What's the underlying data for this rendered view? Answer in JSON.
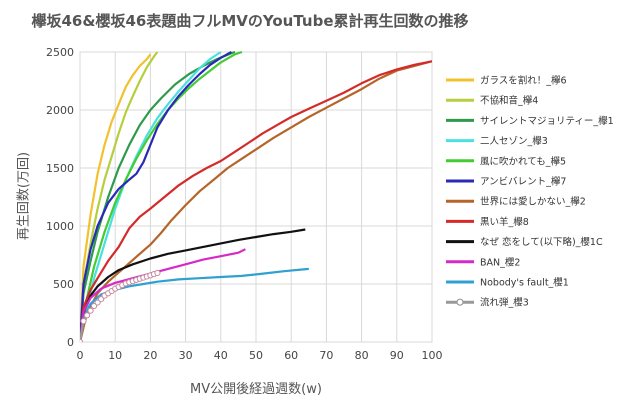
{
  "chart_data": {
    "type": "line",
    "title": "欅坂46&櫻坂46表題曲フルMVのYouTube累計再生回数の推移",
    "xlabel": "MV公開後経過週数(w)",
    "ylabel": "再生回数(万回)",
    "xlim": [
      0,
      100
    ],
    "ylim": [
      0,
      2500
    ],
    "xticks": [
      0,
      10,
      20,
      30,
      40,
      50,
      60,
      70,
      80,
      90,
      100
    ],
    "yticks": [
      0,
      500,
      1000,
      1500,
      2000,
      2500
    ],
    "grid": true,
    "legend_position": "right",
    "series": [
      {
        "name": "ガラスを割れ！_欅6",
        "color": "#f2c12e",
        "marker": "none",
        "points": [
          [
            0,
            0
          ],
          [
            1,
            650
          ],
          [
            3,
            1100
          ],
          [
            5,
            1450
          ],
          [
            7,
            1700
          ],
          [
            9,
            1900
          ],
          [
            11,
            2050
          ],
          [
            13,
            2200
          ],
          [
            15,
            2300
          ],
          [
            17,
            2380
          ],
          [
            19,
            2440
          ],
          [
            20,
            2480
          ]
        ]
      },
      {
        "name": "不協和音_欅4",
        "color": "#b5cf3c",
        "marker": "none",
        "points": [
          [
            0,
            0
          ],
          [
            1,
            500
          ],
          [
            3,
            850
          ],
          [
            5,
            1150
          ],
          [
            7,
            1400
          ],
          [
            9,
            1600
          ],
          [
            11,
            1800
          ],
          [
            13,
            1980
          ],
          [
            15,
            2120
          ],
          [
            17,
            2250
          ],
          [
            19,
            2370
          ],
          [
            21,
            2460
          ],
          [
            22,
            2500
          ]
        ]
      },
      {
        "name": "サイレントマジョリティー_欅1",
        "color": "#2e9a4a",
        "marker": "none",
        "points": [
          [
            0,
            0
          ],
          [
            1,
            420
          ],
          [
            3,
            700
          ],
          [
            5,
            950
          ],
          [
            8,
            1250
          ],
          [
            11,
            1500
          ],
          [
            14,
            1700
          ],
          [
            17,
            1870
          ],
          [
            20,
            2000
          ],
          [
            23,
            2100
          ],
          [
            27,
            2220
          ],
          [
            31,
            2310
          ],
          [
            35,
            2380
          ],
          [
            39,
            2440
          ],
          [
            43,
            2490
          ],
          [
            44,
            2500
          ]
        ]
      },
      {
        "name": "二人セゾン_欅3",
        "color": "#49e0e0",
        "marker": "none",
        "points": [
          [
            0,
            0
          ],
          [
            2,
            300
          ],
          [
            4,
            550
          ],
          [
            7,
            850
          ],
          [
            10,
            1150
          ],
          [
            13,
            1400
          ],
          [
            16,
            1600
          ],
          [
            19,
            1780
          ],
          [
            22,
            1930
          ],
          [
            25,
            2050
          ],
          [
            28,
            2160
          ],
          [
            31,
            2260
          ],
          [
            34,
            2360
          ],
          [
            37,
            2440
          ],
          [
            40,
            2500
          ]
        ]
      },
      {
        "name": "風に吹かれても_欅5",
        "color": "#44cc33",
        "marker": "none",
        "points": [
          [
            0,
            0
          ],
          [
            2,
            380
          ],
          [
            4,
            650
          ],
          [
            7,
            950
          ],
          [
            10,
            1200
          ],
          [
            13,
            1400
          ],
          [
            16,
            1580
          ],
          [
            19,
            1740
          ],
          [
            22,
            1880
          ],
          [
            25,
            2000
          ],
          [
            28,
            2100
          ],
          [
            31,
            2190
          ],
          [
            34,
            2270
          ],
          [
            37,
            2340
          ],
          [
            40,
            2410
          ],
          [
            44,
            2480
          ],
          [
            46,
            2500
          ]
        ]
      },
      {
        "name": "アンビバレント_欅7",
        "color": "#2a2ab8",
        "marker": "none",
        "points": [
          [
            0,
            0
          ],
          [
            1,
            500
          ],
          [
            3,
            800
          ],
          [
            5,
            1000
          ],
          [
            8,
            1200
          ],
          [
            11,
            1320
          ],
          [
            14,
            1400
          ],
          [
            16,
            1450
          ],
          [
            18,
            1550
          ],
          [
            20,
            1700
          ],
          [
            22,
            1850
          ],
          [
            25,
            2000
          ],
          [
            28,
            2120
          ],
          [
            31,
            2220
          ],
          [
            34,
            2310
          ],
          [
            37,
            2390
          ],
          [
            40,
            2450
          ],
          [
            43,
            2500
          ]
        ]
      },
      {
        "name": "世界には愛しかない_欅2",
        "color": "#b5652a",
        "marker": "none",
        "points": [
          [
            0,
            0
          ],
          [
            2,
            250
          ],
          [
            5,
            420
          ],
          [
            8,
            520
          ],
          [
            11,
            600
          ],
          [
            14,
            680
          ],
          [
            17,
            760
          ],
          [
            20,
            840
          ],
          [
            23,
            940
          ],
          [
            26,
            1050
          ],
          [
            30,
            1180
          ],
          [
            34,
            1300
          ],
          [
            38,
            1400
          ],
          [
            42,
            1500
          ],
          [
            46,
            1580
          ],
          [
            50,
            1660
          ],
          [
            55,
            1760
          ],
          [
            60,
            1850
          ],
          [
            65,
            1940
          ],
          [
            70,
            2020
          ],
          [
            75,
            2100
          ],
          [
            80,
            2180
          ],
          [
            85,
            2270
          ],
          [
            90,
            2340
          ],
          [
            95,
            2380
          ],
          [
            100,
            2420
          ]
        ]
      },
      {
        "name": "黒い羊_欅8",
        "color": "#d42a2a",
        "marker": "none",
        "points": [
          [
            0,
            0
          ],
          [
            1,
            300
          ],
          [
            3,
            450
          ],
          [
            5,
            550
          ],
          [
            8,
            700
          ],
          [
            11,
            820
          ],
          [
            14,
            980
          ],
          [
            17,
            1080
          ],
          [
            20,
            1150
          ],
          [
            24,
            1250
          ],
          [
            28,
            1350
          ],
          [
            32,
            1430
          ],
          [
            36,
            1500
          ],
          [
            40,
            1560
          ],
          [
            44,
            1640
          ],
          [
            48,
            1720
          ],
          [
            52,
            1800
          ],
          [
            56,
            1870
          ],
          [
            60,
            1940
          ],
          [
            65,
            2010
          ],
          [
            70,
            2080
          ],
          [
            75,
            2150
          ],
          [
            80,
            2230
          ],
          [
            85,
            2300
          ],
          [
            90,
            2350
          ],
          [
            95,
            2390
          ],
          [
            100,
            2420
          ]
        ]
      },
      {
        "name": "なぜ 恋をして(以下略)_櫻1C",
        "color": "#111111",
        "marker": "none",
        "points": [
          [
            0,
            0
          ],
          [
            1,
            250
          ],
          [
            3,
            400
          ],
          [
            5,
            480
          ],
          [
            8,
            560
          ],
          [
            11,
            620
          ],
          [
            15,
            670
          ],
          [
            20,
            720
          ],
          [
            25,
            760
          ],
          [
            30,
            790
          ],
          [
            35,
            820
          ],
          [
            40,
            850
          ],
          [
            45,
            880
          ],
          [
            50,
            905
          ],
          [
            55,
            930
          ],
          [
            60,
            950
          ],
          [
            64,
            970
          ]
        ]
      },
      {
        "name": "BAN_櫻2",
        "color": "#d62ac8",
        "marker": "none",
        "points": [
          [
            0,
            0
          ],
          [
            1,
            260
          ],
          [
            3,
            380
          ],
          [
            6,
            460
          ],
          [
            10,
            510
          ],
          [
            15,
            550
          ],
          [
            20,
            590
          ],
          [
            25,
            630
          ],
          [
            30,
            670
          ],
          [
            35,
            710
          ],
          [
            40,
            740
          ],
          [
            45,
            770
          ],
          [
            47,
            800
          ]
        ]
      },
      {
        "name": "Nobody's fault_櫻1",
        "color": "#2fa0d0",
        "marker": "none",
        "points": [
          [
            0,
            0
          ],
          [
            1,
            200
          ],
          [
            3,
            330
          ],
          [
            6,
            410
          ],
          [
            10,
            450
          ],
          [
            14,
            480
          ],
          [
            18,
            500
          ],
          [
            22,
            520
          ],
          [
            28,
            540
          ],
          [
            34,
            550
          ],
          [
            40,
            560
          ],
          [
            46,
            570
          ],
          [
            52,
            590
          ],
          [
            58,
            610
          ],
          [
            65,
            630
          ]
        ]
      },
      {
        "name": "流れ弾_櫻3",
        "color": "#999999",
        "marker": "circle",
        "points": [
          [
            0,
            0
          ],
          [
            1,
            180
          ],
          [
            2,
            230
          ],
          [
            3,
            270
          ],
          [
            4,
            310
          ],
          [
            5,
            340
          ],
          [
            6,
            370
          ],
          [
            7,
            400
          ],
          [
            8,
            420
          ],
          [
            9,
            440
          ],
          [
            10,
            460
          ],
          [
            11,
            475
          ],
          [
            12,
            490
          ],
          [
            13,
            505
          ],
          [
            14,
            515
          ],
          [
            15,
            525
          ],
          [
            16,
            535
          ],
          [
            17,
            545
          ],
          [
            18,
            555
          ],
          [
            19,
            565
          ],
          [
            20,
            575
          ],
          [
            21,
            585
          ],
          [
            22,
            595
          ]
        ]
      }
    ]
  }
}
